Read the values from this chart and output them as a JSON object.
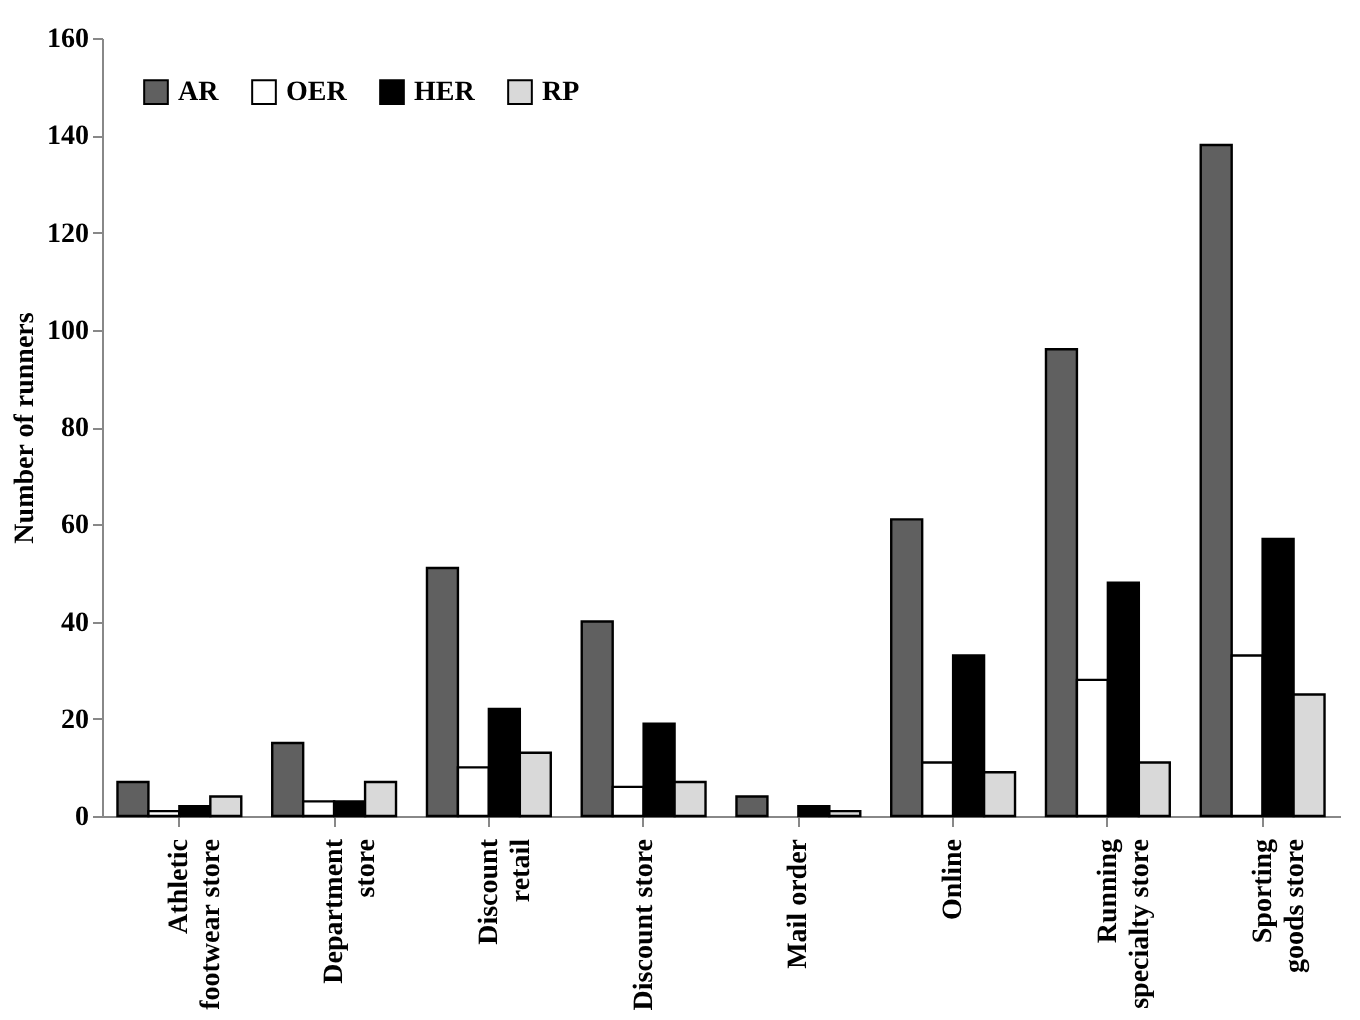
{
  "chart_data": {
    "type": "bar",
    "ylabel": "Number of runners",
    "categories": [
      "Athletic\nfootwear store",
      "Department\nstore",
      "Discount\nretail",
      "Discount store",
      "Mail order",
      "Online",
      "Running\nspecialty store",
      "Sporting\ngoods store"
    ],
    "series": [
      {
        "name": "AR",
        "color": "#606060",
        "values": [
          7,
          15,
          51,
          40,
          4,
          61,
          96,
          138
        ]
      },
      {
        "name": "OER",
        "color": "#ffffff",
        "values": [
          1,
          3,
          10,
          6,
          null,
          11,
          28,
          33
        ]
      },
      {
        "name": "HER",
        "color": "#000000",
        "values": [
          2,
          3,
          22,
          19,
          2,
          33,
          48,
          57
        ]
      },
      {
        "name": "RP",
        "color": "#d9d9d9",
        "values": [
          4,
          7,
          13,
          7,
          1,
          9,
          11,
          25
        ]
      }
    ],
    "ylim": [
      0,
      160
    ],
    "yticks": [
      0,
      20,
      40,
      60,
      80,
      100,
      120,
      140,
      160
    ],
    "grid": false,
    "legend": "top left"
  }
}
